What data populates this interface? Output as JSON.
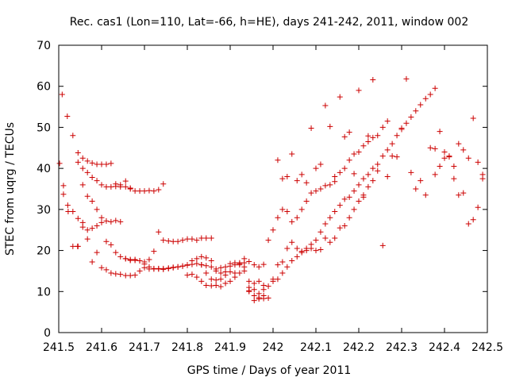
{
  "chart_data": {
    "type": "scatter",
    "title": "Rec. cas1 (Lon=110, Lat=-66, h=HE), days 241-242, 2011, window 002",
    "xlabel": "GPS time / Days of year 2011",
    "ylabel": "STEC from uqrg / TECUs",
    "xlim": [
      241.5,
      242.5
    ],
    "ylim": [
      0,
      70
    ],
    "xticks": [
      241.5,
      241.6,
      241.7,
      241.8,
      241.9,
      242.0,
      242.1,
      242.2,
      242.3,
      242.4,
      242.5
    ],
    "xtick_labels": [
      "241.5",
      "241.6",
      "241.7",
      "241.8",
      "241.9",
      "242",
      "242.1",
      "242.2",
      "242.3",
      "242.4",
      "242.5"
    ],
    "yticks": [
      0,
      10,
      20,
      30,
      40,
      50,
      60,
      70
    ],
    "ytick_labels": [
      "0",
      "10",
      "20",
      "30",
      "40",
      "50",
      "60",
      "70"
    ],
    "grid": false,
    "legend": "none",
    "marker": "plus",
    "color": "#cc0000",
    "series": [
      {
        "x": [
          241.502,
          241.511,
          241.521,
          241.533,
          241.545,
          241.556,
          241.567,
          241.578,
          241.589,
          241.6,
          241.611,
          241.622,
          241.633,
          241.644,
          241.656,
          241.667,
          241.678,
          241.689,
          241.7,
          241.711,
          241.722,
          241.733,
          241.744
        ],
        "y": [
          41.2,
          35.8,
          31.0,
          29.5,
          27.8,
          25.7,
          25.0,
          25.4,
          26.0,
          26.8,
          27.2,
          27.0,
          27.3,
          27.0,
          35.5,
          35.2,
          34.5,
          34.5,
          34.5,
          34.6,
          34.5,
          34.8,
          36.2
        ]
      },
      {
        "x": [
          241.508,
          241.52,
          241.533,
          241.545,
          241.556,
          241.567,
          241.578,
          241.589,
          241.6,
          241.611,
          241.622,
          241.633,
          241.644,
          241.656,
          241.667
        ],
        "y": [
          58.0,
          52.7,
          48.0,
          43.8,
          42.5,
          41.8,
          41.3,
          41.0,
          41.0,
          41.0,
          41.2,
          36.2,
          35.5,
          36.9,
          35.0
        ]
      },
      {
        "x": [
          241.511,
          241.522,
          241.533,
          241.544,
          241.556,
          241.567,
          241.578,
          241.589,
          241.6,
          241.611,
          241.622,
          241.633,
          241.644,
          241.656,
          241.667,
          241.678,
          241.689,
          241.7,
          241.711,
          241.722,
          241.733,
          241.744,
          241.756,
          241.767,
          241.778,
          241.789,
          241.8,
          241.811,
          241.822,
          241.833,
          241.844,
          241.856
        ],
        "y": [
          33.7,
          29.5,
          21.0,
          21.0,
          36.0,
          33.2,
          32.0,
          30.0,
          28.0,
          22.2,
          21.4,
          19.5,
          18.5,
          18.0,
          17.8,
          17.8,
          17.5,
          17.2,
          17.8,
          19.8,
          24.5,
          22.5,
          22.3,
          22.2,
          22.2,
          22.5,
          22.8,
          22.8,
          22.5,
          23.0,
          23.0,
          23.0
        ]
      },
      {
        "x": [
          241.545,
          241.556,
          241.567,
          241.578,
          241.589,
          241.6,
          241.611,
          241.622,
          241.633,
          241.644,
          241.656,
          241.667,
          241.678,
          241.689,
          241.7,
          241.711,
          241.722,
          241.733,
          241.744,
          241.756,
          241.767,
          241.778,
          241.789,
          241.8,
          241.811,
          241.822,
          241.833,
          241.844,
          241.856,
          241.867,
          241.878,
          241.889,
          241.9,
          241.911,
          241.922,
          241.933,
          241.944,
          241.956,
          241.967,
          241.978
        ],
        "y": [
          41.5,
          40.0,
          39.0,
          37.8,
          37.0,
          36.0,
          35.5,
          35.5,
          35.6,
          36.0,
          18.0,
          17.6,
          17.6,
          17.5,
          16.7,
          16.0,
          15.6,
          15.6,
          15.6,
          15.7,
          15.9,
          16.0,
          16.2,
          16.4,
          16.6,
          16.8,
          16.5,
          16.3,
          16.0,
          15.5,
          15.8,
          16.0,
          16.2,
          16.5,
          16.8,
          17.0,
          17.3,
          16.5,
          16.0,
          16.6
        ]
      },
      {
        "x": [
          241.545,
          241.556,
          241.567,
          241.578,
          241.589,
          241.6,
          241.611,
          241.622,
          241.633,
          241.644,
          241.656,
          241.667,
          241.678,
          241.689,
          241.7,
          241.711,
          241.722,
          241.733,
          241.744,
          241.756,
          241.767,
          241.778,
          241.789,
          241.8,
          241.811,
          241.822,
          241.833,
          241.844,
          241.856,
          241.867,
          241.878,
          241.889,
          241.9,
          241.911,
          241.922,
          241.933,
          241.944,
          241.956,
          241.967,
          241.978
        ],
        "y": [
          21.0,
          26.8,
          22.8,
          17.2,
          19.5,
          15.8,
          15.3,
          14.5,
          14.3,
          14.2,
          13.9,
          13.9,
          14.0,
          15.0,
          15.8,
          15.5,
          15.5,
          15.5,
          15.4,
          15.6,
          15.8,
          16.0,
          16.2,
          16.5,
          17.5,
          18.0,
          18.5,
          18.2,
          17.5,
          15.0,
          14.5,
          14.8,
          14.8,
          14.5,
          14.5,
          15.0,
          12.5,
          12.0,
          12.5,
          11.5
        ]
      },
      {
        "x": [
          241.8,
          241.811,
          241.822,
          241.833,
          241.844,
          241.856,
          241.867,
          241.878,
          241.889,
          241.9,
          241.911,
          241.922,
          241.933,
          241.944,
          241.956,
          241.967,
          241.978,
          241.989,
          242.0,
          242.011,
          242.022,
          242.033,
          242.044,
          242.056,
          242.067,
          242.078,
          242.089,
          242.1,
          242.111,
          242.122,
          242.133,
          242.144,
          242.156,
          242.167,
          242.178,
          242.189,
          242.2,
          242.211,
          242.222,
          242.233
        ],
        "y": [
          14.0,
          14.2,
          13.5,
          12.5,
          11.5,
          11.4,
          11.5,
          11.2,
          12.0,
          12.5,
          13.5,
          17.0,
          16.0,
          10.0,
          9.0,
          8.2,
          8.3,
          8.4,
          13.0,
          16.5,
          17.2,
          20.5,
          22.0,
          20.5,
          19.8,
          20.0,
          20.5,
          20.0,
          20.2,
          23.0,
          22.0,
          23.0,
          25.5,
          26.0,
          28.0,
          30.0,
          32.0,
          33.5,
          35.5,
          37.0
        ]
      },
      {
        "x": [
          241.833,
          241.844,
          241.856,
          241.867,
          241.878,
          241.889,
          241.9,
          241.911,
          241.922,
          241.933,
          241.944,
          241.956,
          241.967,
          241.978,
          241.989,
          242.0,
          242.011,
          242.022,
          242.033,
          242.044,
          242.056,
          242.067,
          242.078,
          242.089,
          242.1,
          242.111,
          242.122,
          242.133,
          242.144,
          242.156,
          242.167,
          242.178,
          242.189,
          242.2,
          242.211,
          242.222,
          242.233,
          242.244,
          242.256,
          242.267
        ],
        "y": [
          16.5,
          14.5,
          13.0,
          12.8,
          13.0,
          14.0,
          16.8,
          17.0,
          16.5,
          18.0,
          11.0,
          10.5,
          9.5,
          10.5,
          22.5,
          25.0,
          28.0,
          30.0,
          29.5,
          27.0,
          28.0,
          30.0,
          32.0,
          34.0,
          34.5,
          35.0,
          35.8,
          36.0,
          38.0,
          39.0,
          40.0,
          42.0,
          43.5,
          44.0,
          45.5,
          46.5,
          47.5,
          48.0,
          50.0,
          51.5
        ]
      },
      {
        "x": [
          241.944,
          241.956,
          241.967,
          241.978,
          241.989,
          242.0,
          242.011,
          242.022,
          242.033,
          242.044,
          242.056,
          242.067,
          242.078,
          242.089,
          242.1,
          242.111,
          242.122,
          242.133,
          242.144,
          242.156,
          242.167,
          242.178,
          242.189,
          242.2,
          242.211,
          242.222,
          242.233,
          242.244,
          242.256,
          242.267,
          242.278,
          242.289,
          242.3,
          242.311,
          242.322,
          242.333,
          242.344,
          242.356,
          242.367,
          242.378
        ],
        "y": [
          10.2,
          7.8,
          8.5,
          9.0,
          11.3,
          12.5,
          13.0,
          14.5,
          16.0,
          17.5,
          18.5,
          19.5,
          20.5,
          21.5,
          22.5,
          24.5,
          26.5,
          28.0,
          29.5,
          31.0,
          32.5,
          33.0,
          34.5,
          36.0,
          37.5,
          38.5,
          40.0,
          41.0,
          43.0,
          44.5,
          46.0,
          48.0,
          49.5,
          51.0,
          52.5,
          54.0,
          55.5,
          57.0,
          58.0,
          59.5
        ]
      },
      {
        "x": [
          242.011,
          242.022,
          242.033,
          242.044,
          242.056,
          242.067,
          242.078,
          242.089,
          242.1,
          242.111,
          242.122,
          242.133,
          242.144,
          242.156,
          242.167,
          242.178,
          242.189,
          242.2,
          242.211,
          242.222,
          242.233,
          242.244,
          242.256,
          242.267,
          242.278,
          242.289,
          242.3,
          242.311,
          242.322,
          242.333,
          242.344,
          242.356,
          242.367,
          242.378,
          242.389,
          242.4,
          242.411,
          242.422,
          242.433,
          242.444,
          242.456,
          242.467,
          242.478,
          242.489
        ],
        "y": [
          42.0,
          37.5,
          38.0,
          43.5,
          37.0,
          38.5,
          36.5,
          49.8,
          40.0,
          41.0,
          55.3,
          50.2,
          36.8,
          57.4,
          47.7,
          48.8,
          38.7,
          59.0,
          33.0,
          47.9,
          61.6,
          39.4,
          21.2,
          38.0,
          43.0,
          42.8,
          49.8,
          61.8,
          39.0,
          35.0,
          37.0,
          33.5,
          45.0,
          44.8,
          49.0,
          44.0,
          43.0,
          40.5,
          46.0,
          44.5,
          42.5,
          52.2,
          41.5,
          38.5
        ]
      },
      {
        "x": [
          242.378,
          242.389,
          242.4,
          242.411,
          242.422,
          242.433,
          242.444,
          242.456,
          242.467,
          242.478,
          242.489
        ],
        "y": [
          38.5,
          40.5,
          42.5,
          42.8,
          37.5,
          33.5,
          34.0,
          26.5,
          27.5,
          30.5,
          37.5
        ]
      }
    ]
  }
}
